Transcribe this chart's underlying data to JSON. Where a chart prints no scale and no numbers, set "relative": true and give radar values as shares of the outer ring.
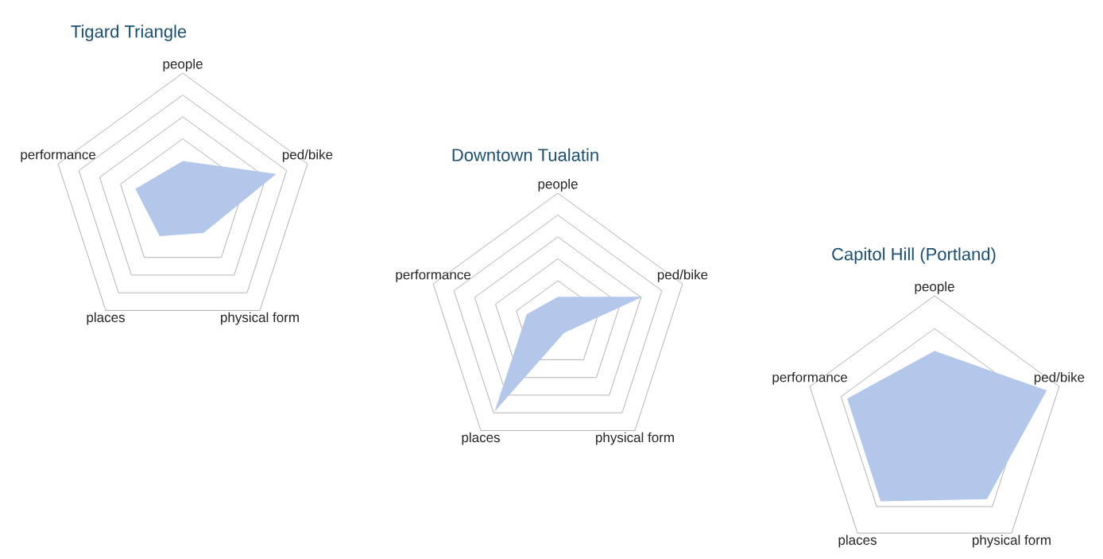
{
  "chart_data": [
    {
      "type": "radar",
      "title": "Tigard Triangle",
      "categories": [
        "people",
        "ped/bike",
        "physical form",
        "places",
        "performance"
      ],
      "relative": true,
      "grid": true,
      "series": [
        {
          "color": "#b3c7ea",
          "values": [
            0.33,
            0.75,
            0.27,
            0.3,
            0.38
          ]
        }
      ]
    },
    {
      "type": "radar",
      "title": "Downtown Tualatin",
      "categories": [
        "people",
        "ped/bike",
        "physical form",
        "places",
        "performance"
      ],
      "relative": true,
      "grid": true,
      "series": [
        {
          "color": "#b3c7ea",
          "values": [
            0.21,
            0.68,
            0.08,
            0.82,
            0.25
          ]
        }
      ]
    },
    {
      "type": "radar",
      "title": "Capitol Hill (Portland)",
      "categories": [
        "people",
        "ped/bike",
        "physical form",
        "places",
        "performance"
      ],
      "relative": true,
      "grid": true,
      "series": [
        {
          "color": "#b3c7ea",
          "values": [
            0.58,
            0.9,
            0.68,
            0.7,
            0.7
          ]
        }
      ]
    }
  ]
}
